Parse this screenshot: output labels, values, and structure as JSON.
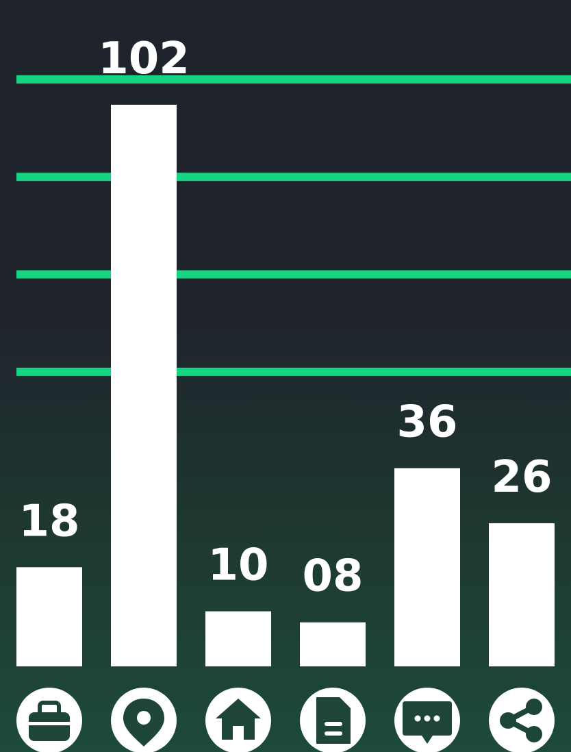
{
  "colors": {
    "background_top": "#1f232b",
    "background_bottom": "#1d4a3a",
    "gridline": "#17d483",
    "bar": "#ffffff",
    "icon_fill": "#ffffff",
    "icon_glyph": "#1e4636"
  },
  "chart_data": {
    "type": "bar",
    "title": "",
    "xlabel": "",
    "ylabel": "",
    "categories": [
      "briefcase-icon",
      "location-pin-icon",
      "home-icon",
      "document-icon",
      "chat-icon",
      "share-icon"
    ],
    "values": [
      18,
      102,
      10,
      8,
      36,
      26
    ],
    "value_labels": [
      "18",
      "102",
      "10",
      "08",
      "36",
      "26"
    ],
    "ylim": [
      0,
      110
    ],
    "grid": true,
    "legend": "none",
    "category_markers": "icons"
  }
}
